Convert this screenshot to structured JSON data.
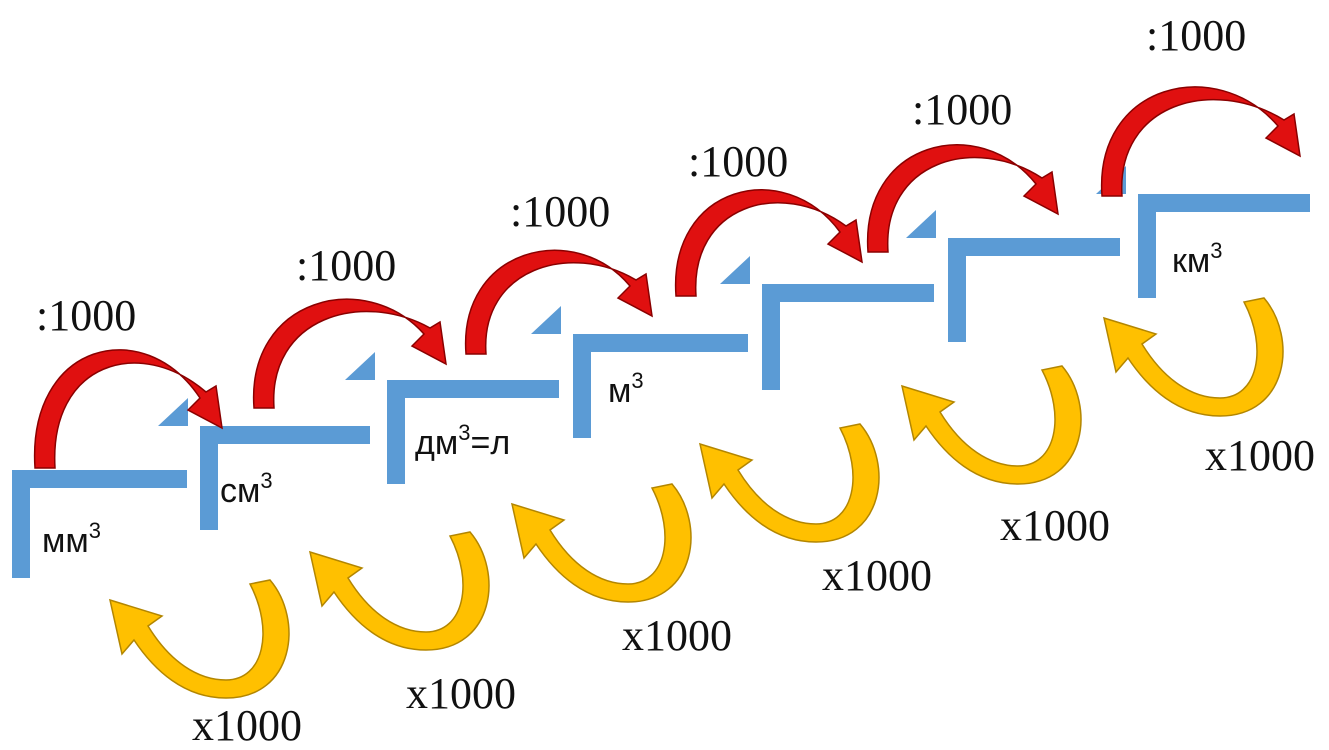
{
  "colors": {
    "step": "#5b9bd5",
    "divide_arrow": "#e01010",
    "divide_arrow_edge": "#8a0000",
    "multiply_arrow": "#ffc000",
    "multiply_arrow_edge": "#b38600"
  },
  "icons": {
    "divide_arrow": "curved-arrow-right-icon",
    "multiply_arrow": "curved-arrow-left-icon"
  },
  "divide_label": ":1000",
  "multiply_label": "x1000",
  "units": [
    {
      "base": "мм",
      "exp": "3",
      "suffix": ""
    },
    {
      "base": "см",
      "exp": "3",
      "suffix": ""
    },
    {
      "base": "дм",
      "exp": "3",
      "suffix": "=л"
    },
    {
      "base": "м",
      "exp": "3",
      "suffix": ""
    },
    {
      "base": "",
      "exp": "",
      "suffix": ""
    },
    {
      "base": "км",
      "exp": "3",
      "suffix": ""
    }
  ]
}
